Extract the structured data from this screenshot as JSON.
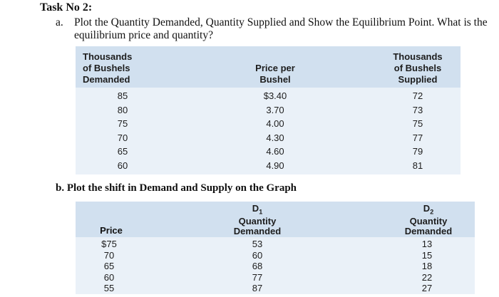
{
  "title": "Task No 2:",
  "question_a": {
    "marker": "a.",
    "text": "Plot the Quantity Demanded, Quantity Supplied and Show the Equilibrium Point. What is the equilibrium price and quantity?"
  },
  "question_b": {
    "text": "b.   Plot the shift in Demand and Supply on the Graph"
  },
  "table1": {
    "headers": {
      "demanded": "Thousands\nof Bushels\nDemanded",
      "price": "Price per\nBushel",
      "supplied": "Thousands\nof Bushels\nSupplied"
    },
    "demanded": [
      "85",
      "80",
      "75",
      "70",
      "65",
      "60"
    ],
    "price": [
      "$3.40",
      "3.70",
      "4.00",
      "4.30",
      "4.60",
      "4.90"
    ],
    "supplied": [
      "72",
      "73",
      "75",
      "77",
      "79",
      "81"
    ]
  },
  "table2": {
    "headers": {
      "price": "Price",
      "d1_symbol": "D",
      "d1_sub": "1",
      "d1_line1": "Quantity",
      "d1_line2": "Demanded",
      "d2_symbol": "D",
      "d2_sub": "2",
      "d2_line1": "Quantity",
      "d2_line2": "Demanded"
    },
    "price": [
      "$75",
      "70",
      "65",
      "60",
      "55"
    ],
    "d1": [
      "53",
      "60",
      "68",
      "77",
      "87"
    ],
    "d2": [
      "13",
      "15",
      "18",
      "22",
      "27"
    ]
  }
}
